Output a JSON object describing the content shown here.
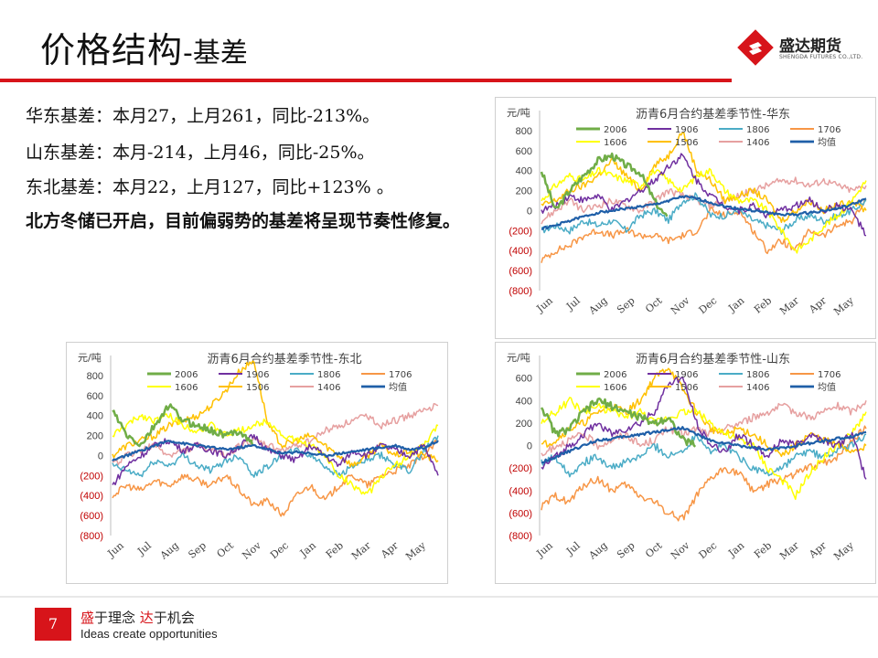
{
  "header": {
    "title_main": "价格结构",
    "title_sub": "-基差"
  },
  "logo": {
    "name_cn": "盛达期货",
    "name_en": "SHENGDA FUTURES CO.,LTD."
  },
  "summary": {
    "line1": "华东基差：本月27，上月261，同比-213%。",
    "line2": "山东基差：本月-214，上月46，同比-25%。",
    "line3": "东北基差：本月22，上月127，同比+123% 。",
    "conclusion": "北方冬储已开启，目前偏弱势的基差将呈现节奏性修复。"
  },
  "footer": {
    "page_number": "7",
    "slogan_part1": "盛",
    "slogan_part2": "于理念 ",
    "slogan_part3": "达",
    "slogan_part4": "于机会",
    "slogan_en": "Ideas create opportunities"
  },
  "colors": {
    "brand_red": "#d7141a",
    "negative_tick": "#c00000"
  },
  "chart_data": [
    {
      "id": "huadong",
      "type": "line",
      "title": "沥青6月合约基差季节性-华东",
      "ylabel": "元/吨",
      "ylim": [
        -800,
        1000
      ],
      "y_ticks": [
        800,
        600,
        400,
        200,
        0,
        -200,
        -400,
        -600,
        -800
      ],
      "y_tick_labels": [
        "800",
        "600",
        "400",
        "200",
        "0",
        "(200)",
        "(400)",
        "(600)",
        "(800)"
      ],
      "x_labels": [
        "Jun",
        "Jul",
        "Aug",
        "Sep",
        "Oct",
        "Nov",
        "Dec",
        "Jan",
        "Feb",
        "Mar",
        "Apr",
        "May"
      ],
      "legend": [
        "2006",
        "1906",
        "1806",
        "1706",
        "1606",
        "1506",
        "1406",
        "均值"
      ],
      "series": [
        {
          "name": "2006",
          "color": "#70ad47",
          "width": 2.5,
          "values": [
            400,
            0,
            200,
            350,
            500,
            550,
            450,
            380,
            100,
            -100,
            null,
            null,
            null,
            null,
            null,
            null,
            null,
            null,
            null,
            null,
            null,
            null,
            null,
            null
          ]
        },
        {
          "name": "1906",
          "color": "#7030a0",
          "width": 1.5,
          "values": [
            0,
            50,
            150,
            100,
            150,
            0,
            100,
            200,
            300,
            450,
            550,
            300,
            150,
            50,
            0,
            50,
            -50,
            0,
            50,
            100,
            0,
            50,
            0,
            -250
          ]
        },
        {
          "name": "1806",
          "color": "#4bacc6",
          "width": 1.5,
          "values": [
            -200,
            -150,
            -200,
            -100,
            -150,
            -100,
            -200,
            -50,
            0,
            -100,
            100,
            150,
            -50,
            -50,
            0,
            -100,
            -150,
            -200,
            -100,
            -50,
            -100,
            -50,
            0,
            100
          ]
        },
        {
          "name": "1706",
          "color": "#f79646",
          "width": 1.5,
          "values": [
            -500,
            -400,
            -350,
            -250,
            -200,
            -250,
            -200,
            -250,
            -250,
            -300,
            -250,
            -200,
            0,
            -50,
            0,
            -200,
            -400,
            -300,
            -400,
            -200,
            -250,
            -150,
            -100,
            100
          ]
        },
        {
          "name": "1606",
          "color": "#ffff00",
          "width": 1.5,
          "values": [
            100,
            250,
            350,
            300,
            400,
            350,
            300,
            250,
            400,
            300,
            200,
            350,
            400,
            200,
            100,
            100,
            0,
            -200,
            -400,
            -300,
            -150,
            -50,
            100,
            300
          ]
        },
        {
          "name": "1506",
          "color": "#ffc000",
          "width": 1.5,
          "values": [
            50,
            100,
            200,
            250,
            350,
            500,
            350,
            200,
            450,
            550,
            800,
            400,
            300,
            100,
            150,
            200,
            100,
            -100,
            0,
            100,
            0,
            50,
            100,
            0
          ]
        },
        {
          "name": "1406",
          "color": "#e6a0a0",
          "width": 1.5,
          "values": [
            -100,
            0,
            100,
            0,
            50,
            100,
            50,
            0,
            100,
            200,
            150,
            100,
            50,
            100,
            150,
            200,
            250,
            300,
            300,
            250,
            300,
            250,
            200,
            250
          ]
        },
        {
          "name": "均值",
          "color": "#1f5fa8",
          "width": 2.2,
          "values": [
            -180,
            -150,
            -100,
            -60,
            -20,
            0,
            20,
            40,
            60,
            100,
            140,
            120,
            80,
            40,
            20,
            0,
            -20,
            -40,
            -40,
            -20,
            0,
            20,
            60,
            120
          ]
        }
      ]
    },
    {
      "id": "dongbei",
      "type": "line",
      "title": "沥青6月合约基差季节性-东北",
      "ylabel": "元/吨",
      "ylim": [
        -800,
        1000
      ],
      "y_ticks": [
        800,
        600,
        400,
        200,
        0,
        -200,
        -400,
        -600,
        -800
      ],
      "y_tick_labels": [
        "800",
        "600",
        "400",
        "200",
        "0",
        "(200)",
        "(400)",
        "(600)",
        "(800)"
      ],
      "x_labels": [
        "Jun",
        "Jul",
        "Aug",
        "Sep",
        "Oct",
        "Nov",
        "Dec",
        "Jan",
        "Feb",
        "Mar",
        "Apr",
        "May"
      ],
      "legend": [
        "2006",
        "1906",
        "1806",
        "1706",
        "1606",
        "1506",
        "1406",
        "均值"
      ],
      "series": [
        {
          "name": "2006",
          "color": "#70ad47",
          "width": 2.5,
          "values": [
            450,
            200,
            100,
            300,
            500,
            350,
            300,
            250,
            200,
            250,
            100,
            null,
            null,
            null,
            null,
            null,
            null,
            null,
            null,
            null,
            null,
            null,
            null,
            null
          ]
        },
        {
          "name": "1906",
          "color": "#7030a0",
          "width": 1.5,
          "values": [
            -300,
            -100,
            0,
            100,
            150,
            50,
            100,
            50,
            0,
            100,
            200,
            50,
            0,
            -50,
            100,
            0,
            -100,
            50,
            0,
            100,
            50,
            0,
            100,
            -200
          ]
        },
        {
          "name": "1806",
          "color": "#4bacc6",
          "width": 1.5,
          "values": [
            -100,
            -150,
            -200,
            -50,
            -100,
            0,
            -100,
            -150,
            -50,
            0,
            -200,
            -100,
            0,
            50,
            0,
            -100,
            -200,
            -100,
            -50,
            0,
            -100,
            -150,
            50,
            200
          ]
        },
        {
          "name": "1706",
          "color": "#f79646",
          "width": 1.5,
          "values": [
            -400,
            -300,
            -350,
            -250,
            -300,
            -200,
            -250,
            -300,
            -200,
            -350,
            -500,
            -450,
            -600,
            -400,
            -300,
            -450,
            -300,
            -200,
            -300,
            -200,
            -150,
            -100,
            0,
            150
          ]
        },
        {
          "name": "1606",
          "color": "#ffff00",
          "width": 1.5,
          "values": [
            200,
            300,
            400,
            350,
            400,
            300,
            250,
            300,
            200,
            250,
            300,
            350,
            200,
            150,
            100,
            0,
            -200,
            -300,
            -400,
            -200,
            -100,
            0,
            100,
            300
          ]
        },
        {
          "name": "1506",
          "color": "#ffc000",
          "width": 1.5,
          "values": [
            0,
            100,
            150,
            200,
            300,
            350,
            400,
            500,
            650,
            850,
            950,
            300,
            100,
            150,
            200,
            100,
            0,
            -100,
            0,
            100,
            0,
            50,
            0,
            -50
          ]
        },
        {
          "name": "1406",
          "color": "#e6a0a0",
          "width": 1.5,
          "values": [
            -100,
            0,
            50,
            100,
            0,
            50,
            100,
            50,
            0,
            100,
            150,
            100,
            50,
            100,
            150,
            250,
            300,
            350,
            400,
            300,
            350,
            400,
            450,
            500
          ]
        },
        {
          "name": "均值",
          "color": "#1f5fa8",
          "width": 2.2,
          "values": [
            -50,
            0,
            50,
            100,
            150,
            120,
            100,
            80,
            60,
            80,
            100,
            60,
            20,
            40,
            20,
            0,
            20,
            40,
            60,
            80,
            100,
            60,
            80,
            150
          ]
        }
      ]
    },
    {
      "id": "shandong",
      "type": "line",
      "title": "沥青6月合约基差季节性-山东",
      "ylabel": "元/吨",
      "ylim": [
        -800,
        800
      ],
      "y_ticks": [
        600,
        400,
        200,
        0,
        -200,
        -400,
        -600,
        -800
      ],
      "y_tick_labels": [
        "600",
        "400",
        "200",
        "0",
        "(200)",
        "(400)",
        "(600)",
        "(800)"
      ],
      "x_labels": [
        "Jun",
        "Jul",
        "Aug",
        "Sep",
        "Oct",
        "Nov",
        "Dec",
        "Jan",
        "Feb",
        "Mar",
        "Apr",
        "May"
      ],
      "legend": [
        "2006",
        "1906",
        "1806",
        "1706",
        "1606",
        "1506",
        "1406",
        "均值"
      ],
      "series": [
        {
          "name": "2006",
          "color": "#70ad47",
          "width": 2.5,
          "values": [
            350,
            100,
            150,
            300,
            400,
            350,
            300,
            250,
            200,
            250,
            50,
            0,
            null,
            null,
            null,
            null,
            null,
            null,
            null,
            null,
            null,
            null,
            null,
            null
          ]
        },
        {
          "name": "1906",
          "color": "#7030a0",
          "width": 1.5,
          "values": [
            -200,
            -100,
            0,
            100,
            200,
            100,
            150,
            200,
            300,
            550,
            600,
            200,
            0,
            -50,
            100,
            0,
            -100,
            50,
            0,
            100,
            50,
            0,
            100,
            -300
          ]
        },
        {
          "name": "1806",
          "color": "#4bacc6",
          "width": 1.5,
          "values": [
            -150,
            -100,
            -250,
            -150,
            -100,
            -200,
            -150,
            -100,
            0,
            -100,
            -50,
            100,
            -50,
            0,
            -100,
            -200,
            -250,
            -200,
            -100,
            -50,
            -100,
            -50,
            0,
            100
          ]
        },
        {
          "name": "1706",
          "color": "#f79646",
          "width": 1.5,
          "values": [
            -550,
            -450,
            -500,
            -350,
            -300,
            -400,
            -350,
            -450,
            -500,
            -600,
            -650,
            -450,
            -300,
            -200,
            -250,
            -400,
            -350,
            -300,
            -250,
            -200,
            -150,
            -100,
            50,
            150
          ]
        },
        {
          "name": "1606",
          "color": "#ffff00",
          "width": 1.5,
          "values": [
            200,
            300,
            400,
            300,
            350,
            300,
            250,
            300,
            200,
            250,
            300,
            300,
            200,
            100,
            50,
            0,
            -200,
            -300,
            -450,
            -250,
            -100,
            0,
            100,
            300
          ]
        },
        {
          "name": "1506",
          "color": "#ffc000",
          "width": 1.5,
          "values": [
            0,
            50,
            150,
            200,
            300,
            350,
            300,
            400,
            600,
            700,
            500,
            300,
            150,
            100,
            150,
            100,
            0,
            -100,
            0,
            100,
            50,
            0,
            -50,
            0
          ]
        },
        {
          "name": "1406",
          "color": "#e6a0a0",
          "width": 1.5,
          "values": [
            -100,
            0,
            50,
            100,
            0,
            50,
            100,
            0,
            50,
            150,
            100,
            150,
            100,
            150,
            200,
            250,
            300,
            350,
            300,
            250,
            300,
            350,
            300,
            400
          ]
        },
        {
          "name": "均值",
          "color": "#1f5fa8",
          "width": 2.2,
          "values": [
            -150,
            -100,
            -50,
            0,
            50,
            60,
            80,
            100,
            120,
            140,
            160,
            100,
            40,
            20,
            0,
            -20,
            -40,
            -20,
            0,
            20,
            40,
            60,
            80,
            120
          ]
        }
      ]
    }
  ]
}
